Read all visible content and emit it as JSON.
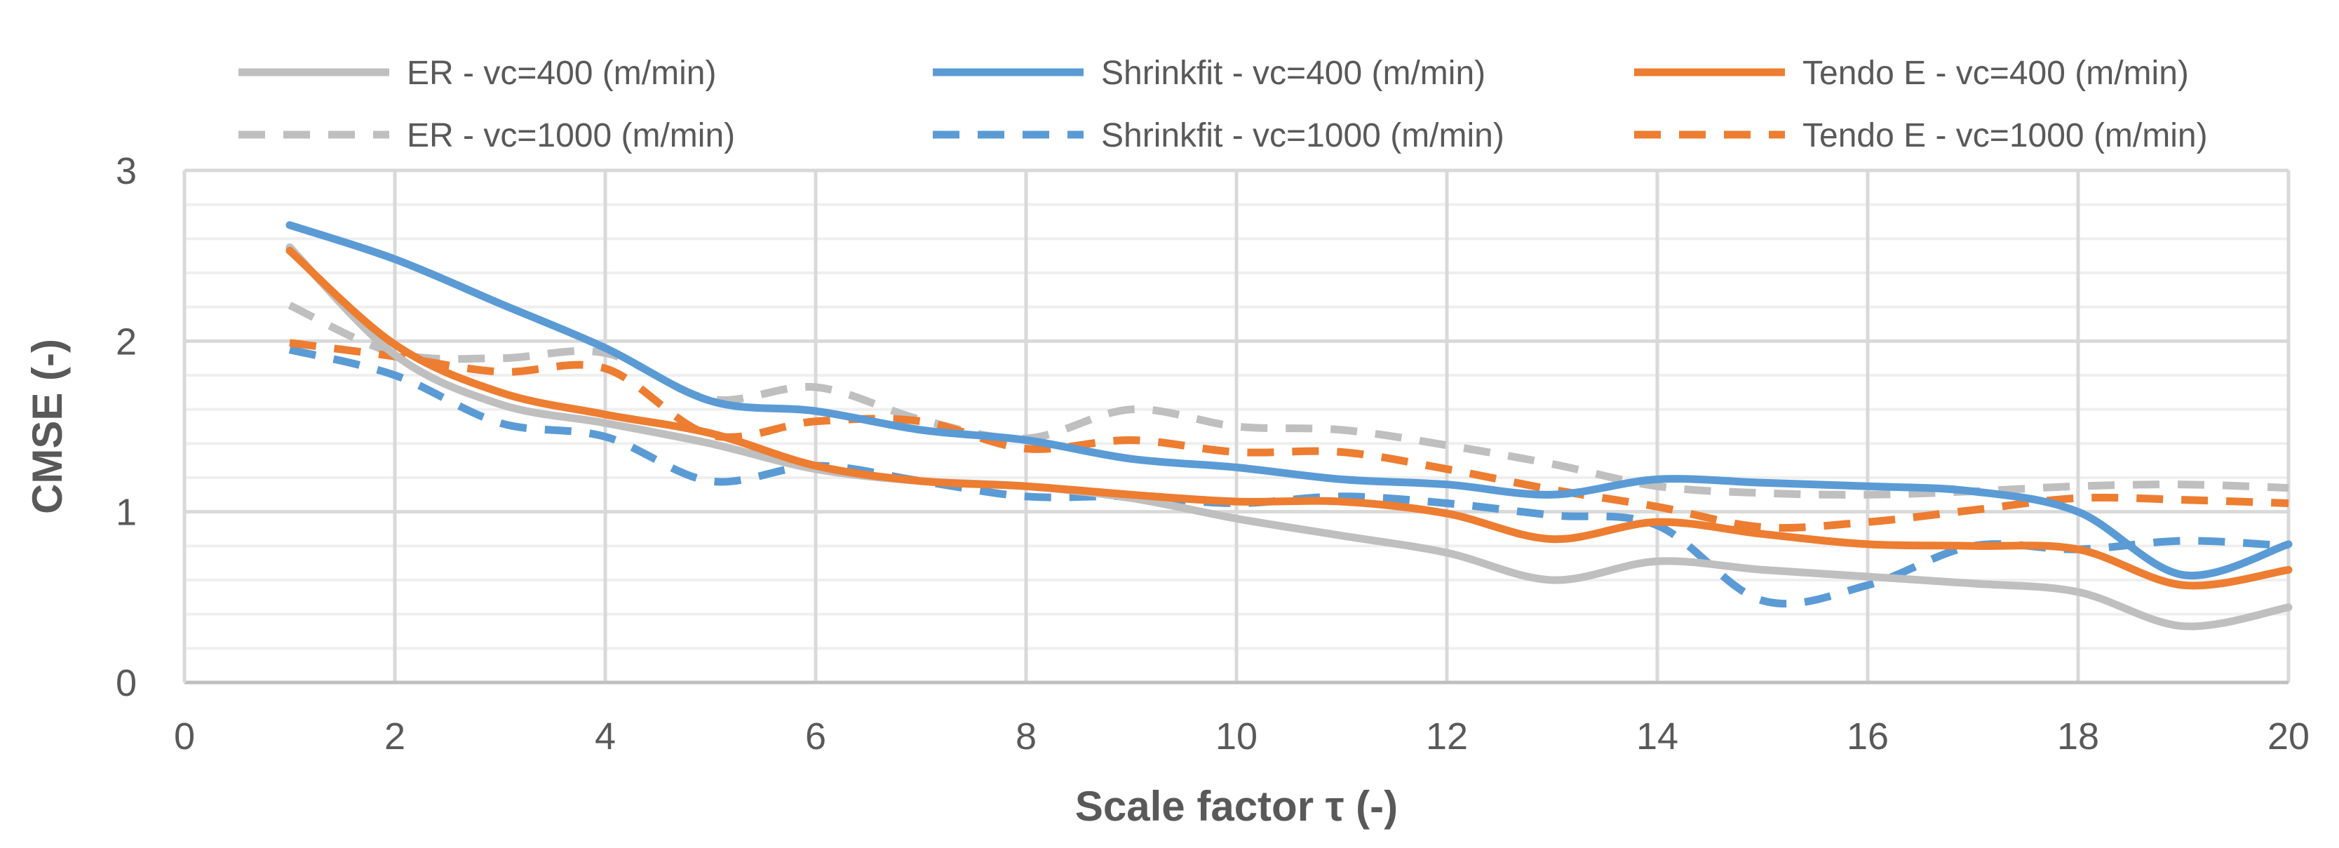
{
  "chart_data": {
    "type": "line",
    "title": "",
    "xlabel": "Scale factor τ (-)",
    "ylabel": "CMSE (-)",
    "xlim": [
      0,
      20
    ],
    "ylim": [
      0,
      3
    ],
    "x_ticks": [
      "0",
      "2",
      "4",
      "6",
      "8",
      "10",
      "12",
      "14",
      "16",
      "18",
      "20"
    ],
    "y_ticks": [
      "0",
      "1",
      "2",
      "3"
    ],
    "grid": true,
    "legend_position": "top",
    "x": [
      1,
      2,
      3,
      4,
      5,
      6,
      7,
      8,
      9,
      10,
      11,
      12,
      13,
      14,
      15,
      16,
      17,
      18,
      19,
      20
    ],
    "series": [
      {
        "name": "ER - vc=400 (m/min)",
        "color": "#BFBFBF",
        "dash": "solid",
        "values": [
          2.55,
          1.92,
          1.63,
          1.52,
          1.4,
          1.25,
          1.18,
          1.15,
          1.08,
          0.96,
          0.86,
          0.76,
          0.6,
          0.71,
          0.66,
          0.62,
          0.58,
          0.53,
          0.33,
          0.44
        ]
      },
      {
        "name": "Shrinkfit - vc=400 (m/min)",
        "color": "#5B9BD5",
        "dash": "solid",
        "values": [
          2.68,
          2.48,
          2.22,
          1.96,
          1.65,
          1.59,
          1.48,
          1.42,
          1.31,
          1.26,
          1.19,
          1.16,
          1.1,
          1.19,
          1.17,
          1.15,
          1.12,
          1.0,
          0.63,
          0.81
        ]
      },
      {
        "name": "Tendo E - vc=400 (m/min)",
        "color": "#ED7D31",
        "dash": "solid",
        "values": [
          2.53,
          1.98,
          1.7,
          1.57,
          1.46,
          1.27,
          1.18,
          1.15,
          1.1,
          1.06,
          1.06,
          0.99,
          0.84,
          0.94,
          0.87,
          0.81,
          0.8,
          0.78,
          0.57,
          0.66
        ]
      },
      {
        "name": "ER - vc=1000 (m/min)",
        "color": "#BFBFBF",
        "dash": "dashed",
        "values": [
          2.21,
          1.93,
          1.9,
          1.93,
          1.66,
          1.73,
          1.54,
          1.43,
          1.6,
          1.5,
          1.48,
          1.39,
          1.28,
          1.15,
          1.11,
          1.1,
          1.12,
          1.15,
          1.16,
          1.14
        ]
      },
      {
        "name": "Shrinkfit - vc=1000 (m/min)",
        "color": "#5B9BD5",
        "dash": "dashed",
        "values": [
          1.95,
          1.8,
          1.52,
          1.44,
          1.18,
          1.27,
          1.18,
          1.09,
          1.09,
          1.05,
          1.09,
          1.05,
          0.98,
          0.92,
          0.48,
          0.57,
          0.8,
          0.78,
          0.83,
          0.8
        ]
      },
      {
        "name": "Tendo E - vc=1000 (m/min)",
        "color": "#ED7D31",
        "dash": "dashed",
        "values": [
          1.99,
          1.91,
          1.82,
          1.84,
          1.45,
          1.53,
          1.53,
          1.37,
          1.42,
          1.35,
          1.35,
          1.25,
          1.13,
          1.03,
          0.91,
          0.94,
          1.01,
          1.08,
          1.07,
          1.05
        ]
      }
    ]
  }
}
